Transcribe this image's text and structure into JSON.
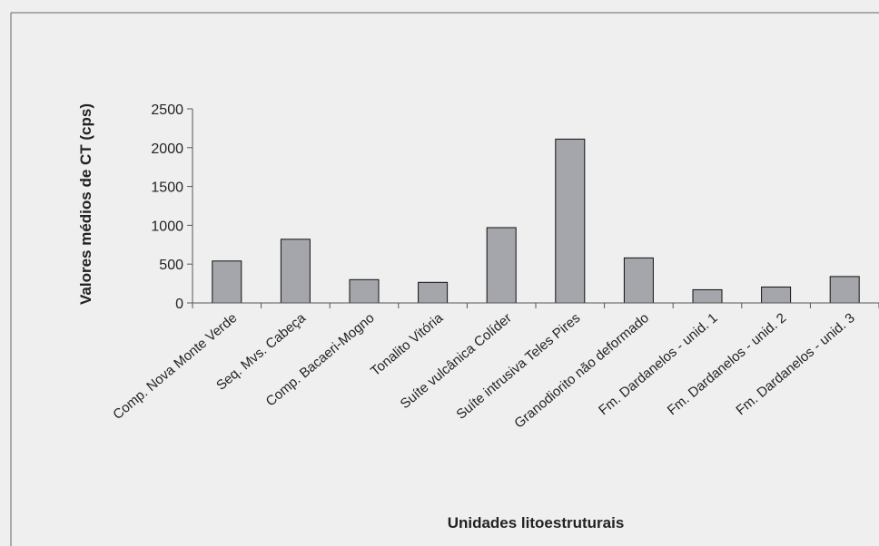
{
  "chart_data": {
    "type": "bar",
    "title": "",
    "xlabel": "Unidades litoestruturais",
    "ylabel": "Valores médios de CT (cps)",
    "ylim": [
      0,
      2500
    ],
    "yticks": [
      0,
      500,
      1000,
      1500,
      2000,
      2500
    ],
    "grid": false,
    "legend": "none",
    "categories": [
      "Comp. Nova Monte Verde",
      "Seq. Mvs. Cabeça",
      "Comp. Bacaeri-Mogno",
      "Tonalito Vitória",
      "Suíte vulcânica Colíder",
      "Suíte intrusiva Teles Pires",
      "Granodiorito não deformado",
      "Fm. Dardanelos - unid. 1",
      "Fm. Dardanelos - unid. 2",
      "Fm. Dardanelos - unid. 3"
    ],
    "values": [
      540,
      820,
      300,
      265,
      970,
      2110,
      580,
      170,
      205,
      340
    ],
    "colors": {
      "bar": "#a4a6ab",
      "bar_stroke": "#111111",
      "axis": "#555555",
      "background": "#efefef",
      "border": "#666666"
    }
  }
}
